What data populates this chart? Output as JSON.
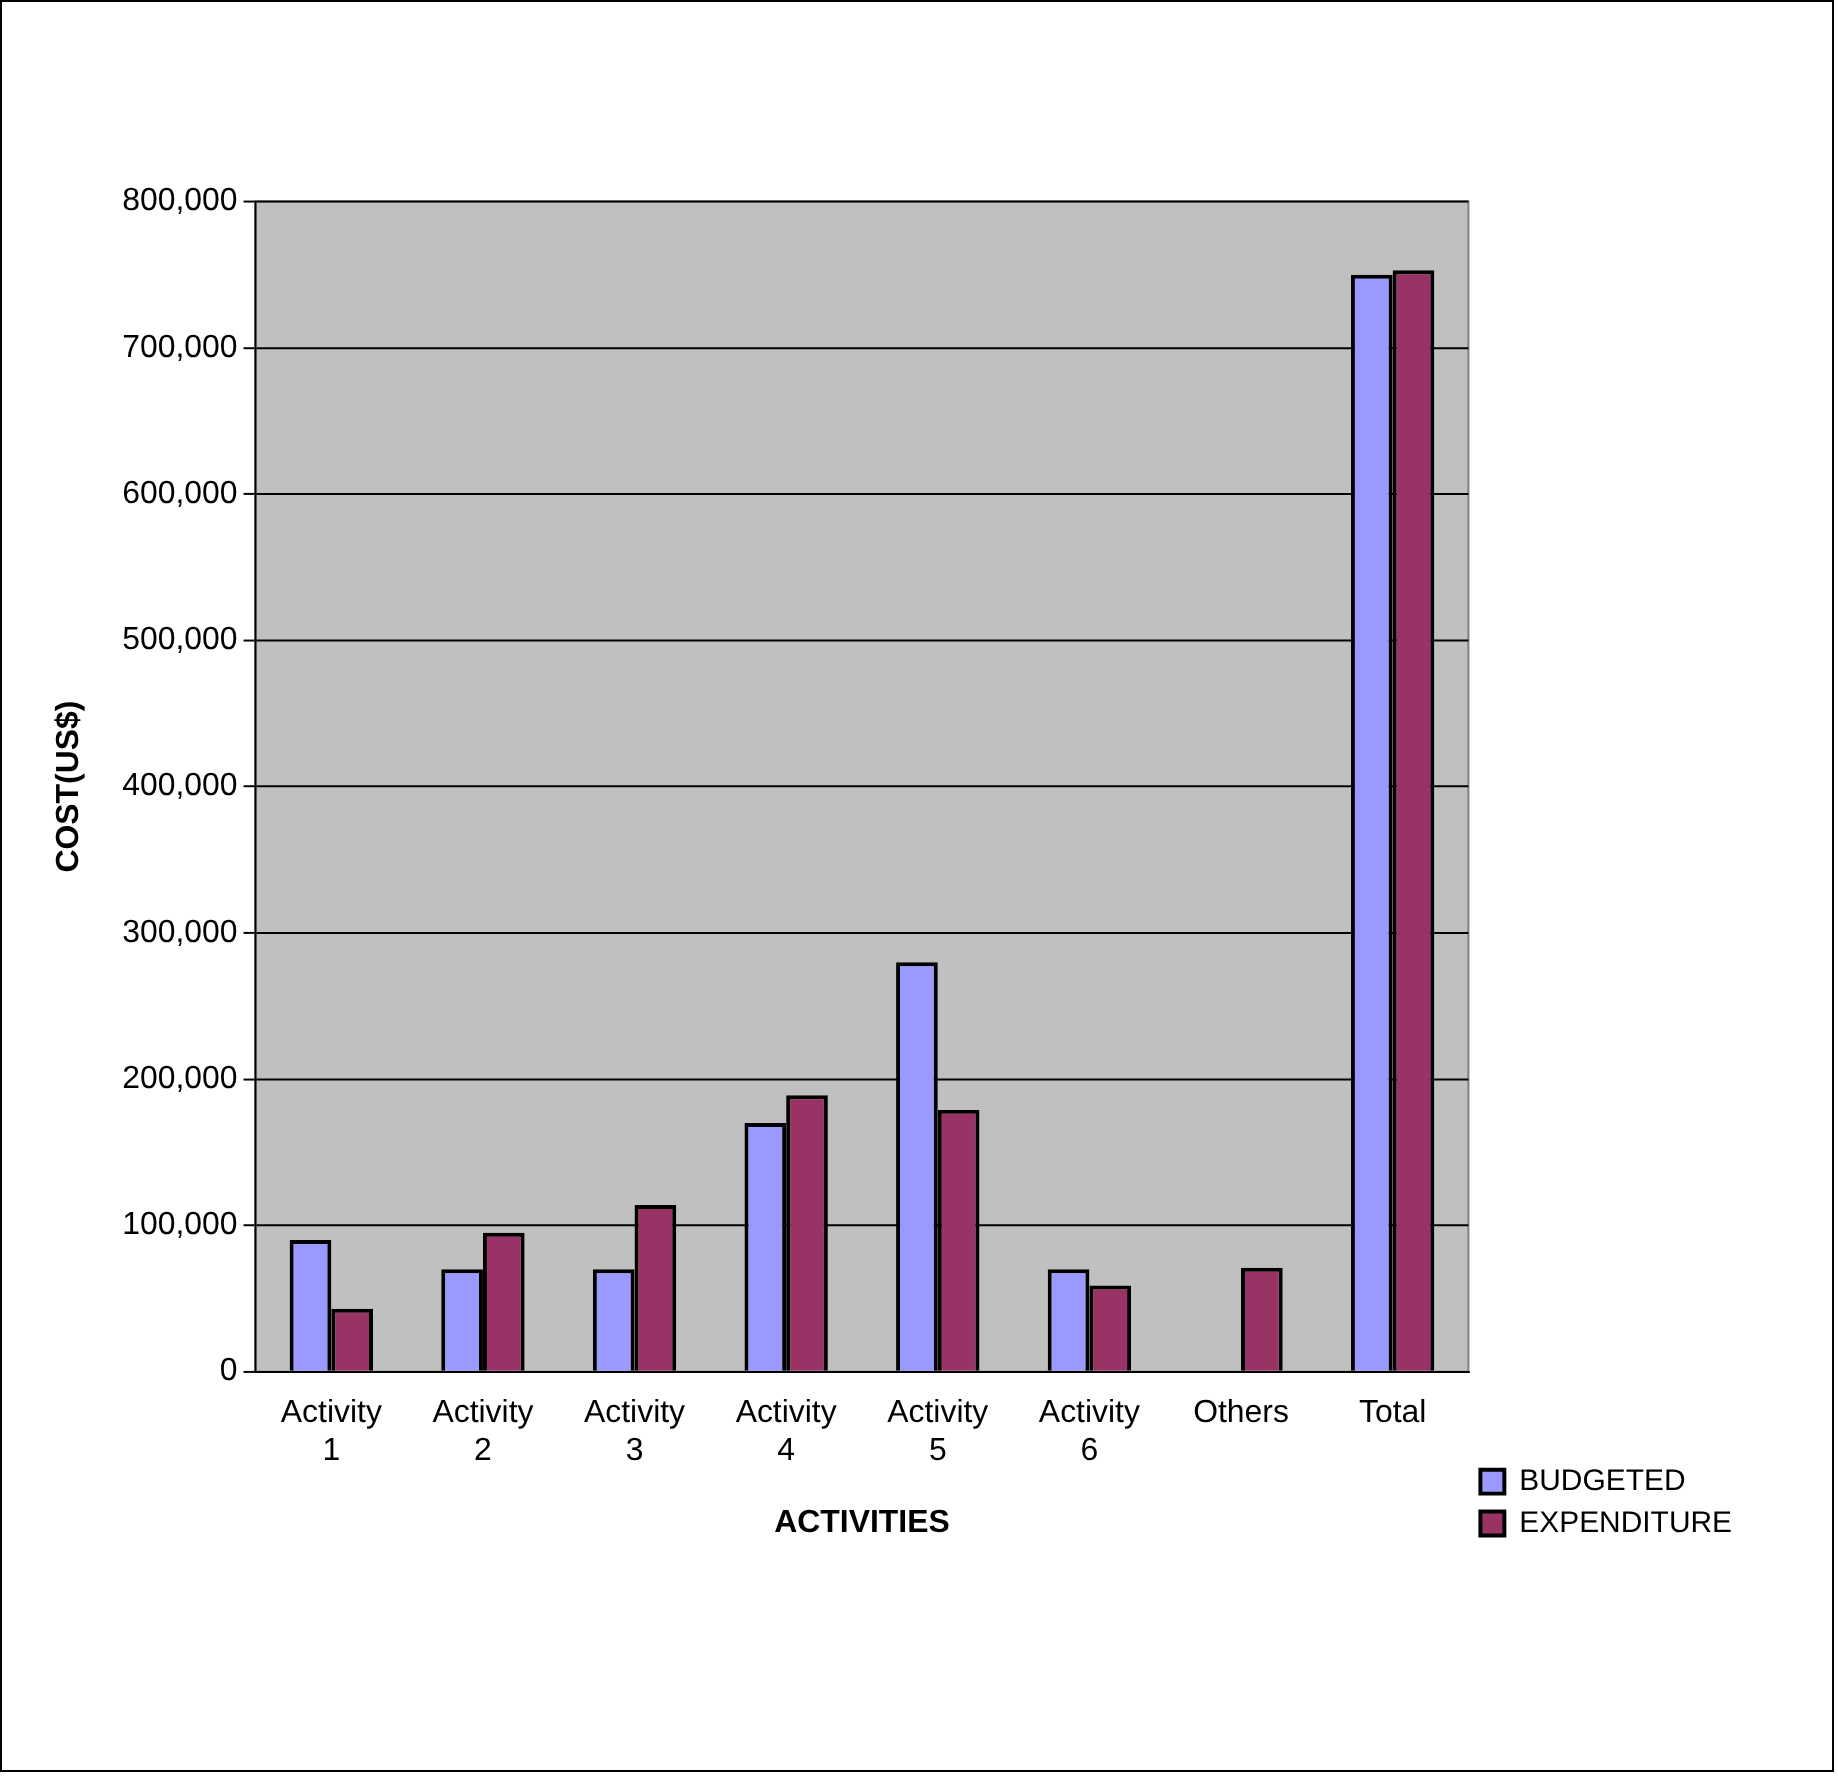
{
  "chart_data": {
    "type": "bar",
    "xlabel": "ACTIVITIES",
    "ylabel": "COST(US$)",
    "categories": [
      "Activity 1",
      "Activity 2",
      "Activity 3",
      "Activity 4",
      "Activity 5",
      "Activity 6",
      "Others",
      "Total"
    ],
    "series": [
      {
        "name": "BUDGETED",
        "color": "#9999ff",
        "values": [
          90000,
          70000,
          70000,
          170000,
          280000,
          70000,
          null,
          750000
        ]
      },
      {
        "name": "EXPENDITURE",
        "color": "#993366",
        "values": [
          43000,
          95000,
          114000,
          189000,
          179000,
          59000,
          71000,
          753000
        ]
      }
    ],
    "ylim": [
      0,
      800000
    ],
    "yticks": [
      0,
      {
        "value": 100000,
        "label": "100,000"
      },
      {
        "value": 200000,
        "label": "200,000"
      },
      {
        "value": 300000,
        "label": "300,000"
      },
      {
        "value": 400000,
        "label": "400,000"
      },
      {
        "value": 500000,
        "label": "500,000"
      },
      {
        "value": 600000,
        "label": "600,000"
      },
      {
        "value": 700000,
        "label": "700,000"
      },
      {
        "value": 800000,
        "label": "800,000"
      }
    ],
    "grid": "y",
    "legend": "right"
  }
}
